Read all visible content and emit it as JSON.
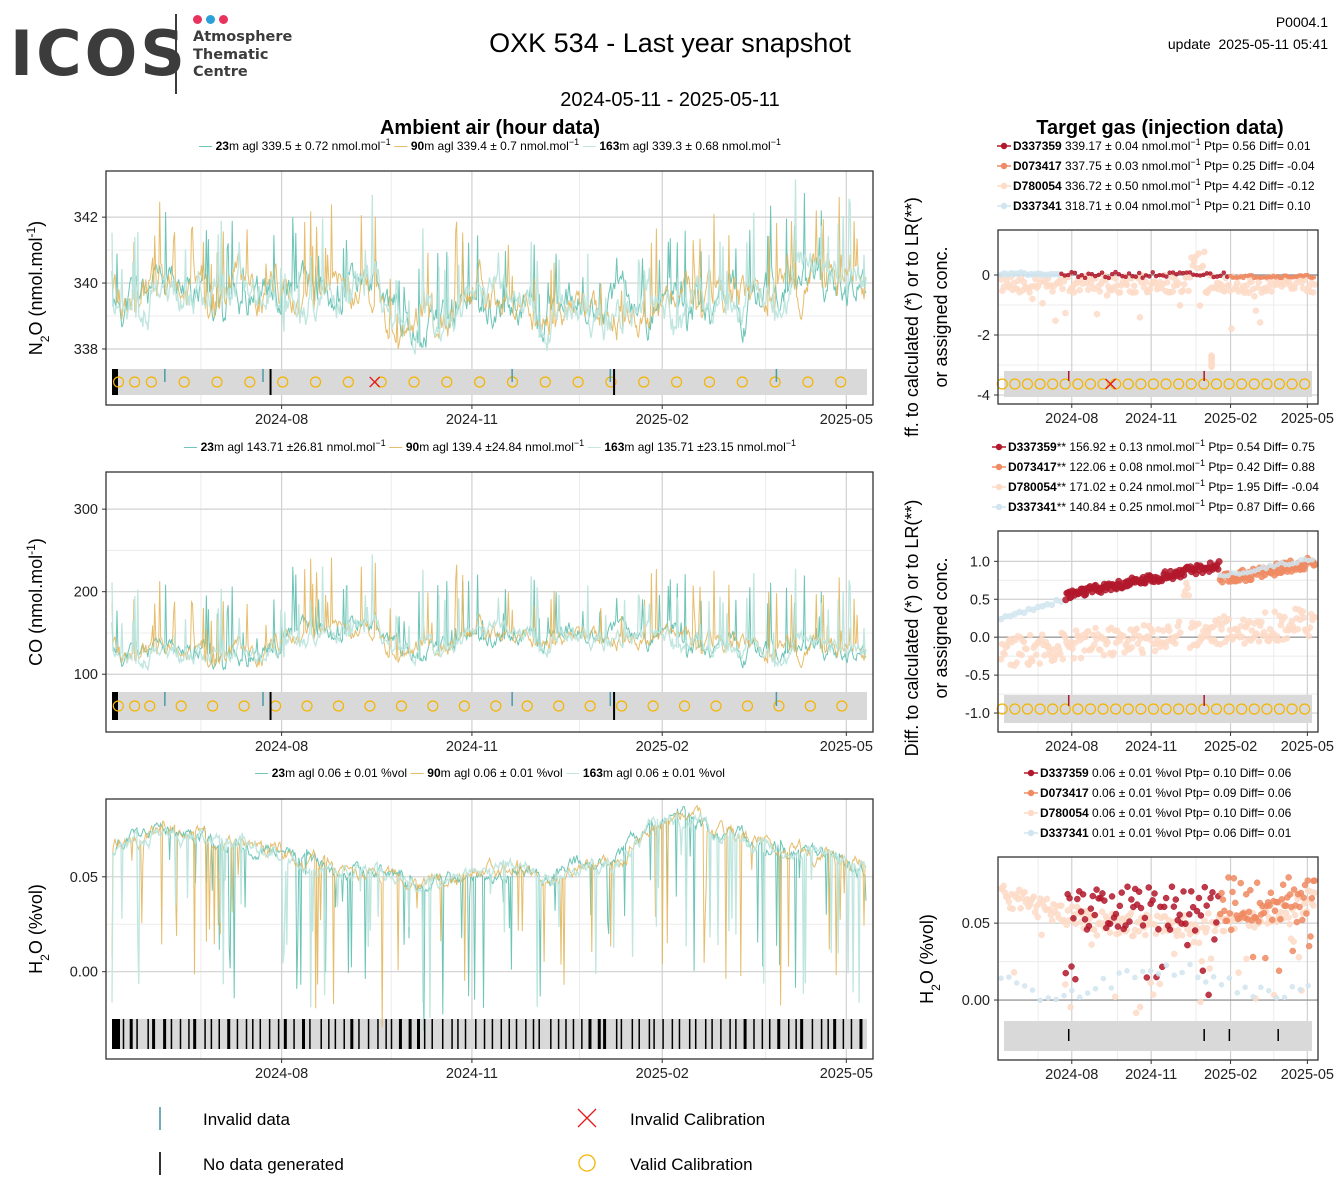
{
  "header": {
    "logo": {
      "wordmark": "ICOS",
      "lines": [
        "Atmosphere",
        "Thematic",
        "Centre"
      ],
      "dot_colors": [
        "#e8335f",
        "#2a9fd8",
        "#e8335f"
      ]
    },
    "title": "OXK 534 - Last year snapshot",
    "date_range": "2024-05-11 - 2025-05-11",
    "plot_id": "P0004.1",
    "update": "update  2025-05-11 05:41"
  },
  "section_titles": {
    "ambient": "Ambient air (hour data)",
    "target": "Target gas (injection data)"
  },
  "colors": {
    "h23": "#5cbfae",
    "h90": "#e3b65c",
    "h163": "#bde5dd",
    "D337359": "#b2182b",
    "D073417": "#ef8a62",
    "D780054": "#fddbc7",
    "D337341": "#d1e5f0",
    "invalid_data": "#4a9aa8",
    "no_data": "#000000",
    "invalid_cal": "#e41a1c",
    "valid_cal": "#f4b400",
    "band": "#d9d9d9",
    "grid_major": "#d0d0d0",
    "grid_minor": "#ececec"
  },
  "chart_data": [
    {
      "id": "n2o-ambient",
      "type": "line",
      "ylabel": "N2O (nmol.mol-1)",
      "ylabel_parts": {
        "base": "N",
        "sub": "2",
        "mid": "O (nmol.mol",
        "sup": "-1",
        "end": ")"
      },
      "x_ticks": [
        "2024-08",
        "2024-11",
        "2025-02",
        "2025-05"
      ],
      "y_ticks": [
        338,
        340,
        342
      ],
      "ylim": [
        336.3,
        343.4
      ],
      "base": 339.5,
      "vol": 0.9,
      "events": true,
      "series": [
        {
          "height": "23",
          "unit": "m agl",
          "stats": "339.5 ± 0.72 nmol.mol",
          "sup": "−1"
        },
        {
          "height": "90",
          "unit": "m agl",
          "stats": "339.4 ± 0.7 nmol.mol",
          "sup": "−1"
        },
        {
          "height": "163",
          "unit": "m agl",
          "stats": "339.3 ± 0.68 nmol.mol",
          "sup": "−1"
        }
      ],
      "flags": {
        "valid_cal": 23,
        "invalid_cal_at": "2024-09-15"
      }
    },
    {
      "id": "co-ambient",
      "type": "line",
      "ylabel": "CO (nmol.mol-1)",
      "ylabel_parts": {
        "base": "CO (nmol.mol",
        "sub": "",
        "mid": "",
        "sup": "-1",
        "end": ")"
      },
      "x_ticks": [
        "2024-08",
        "2024-11",
        "2025-02",
        "2025-05"
      ],
      "y_ticks": [
        100,
        200,
        300
      ],
      "ylim": [
        30,
        345
      ],
      "base": 135,
      "vol": 18,
      "events": true,
      "series": [
        {
          "height": "23",
          "unit": "m agl",
          "stats": "143.71 ±26.81 nmol.mol",
          "sup": "−1"
        },
        {
          "height": "90",
          "unit": "m agl",
          "stats": "139.4 ±24.84 nmol.mol",
          "sup": "−1"
        },
        {
          "height": "163",
          "unit": "m agl",
          "stats": "135.71 ±23.15 nmol.mol",
          "sup": "−1"
        }
      ],
      "flags": {
        "valid_cal": 24
      }
    },
    {
      "id": "h2o-ambient",
      "type": "line",
      "ylabel": "H2O (%vol)",
      "ylabel_parts": {
        "base": "H",
        "sub": "2",
        "mid": "O (%vol)",
        "sup": "",
        "end": ""
      },
      "x_ticks": [
        "2024-08",
        "2024-11",
        "2025-02",
        "2025-05"
      ],
      "y_ticks": [
        0.0,
        0.05
      ],
      "ylim": [
        -0.046,
        0.091
      ],
      "base": 0.06,
      "vol": 0.006,
      "events": false,
      "series": [
        {
          "height": "23",
          "unit": "m agl",
          "stats": "0.06 ± 0.01 %vol",
          "sup": ""
        },
        {
          "height": "90",
          "unit": "m agl",
          "stats": "0.06 ± 0.01 %vol",
          "sup": ""
        },
        {
          "height": "163",
          "unit": "m agl",
          "stats": "0.06 ± 0.01 %vol",
          "sup": ""
        }
      ],
      "flags": {
        "no_data_ticks": 92
      }
    },
    {
      "id": "n2o-target",
      "type": "scatter",
      "ylabel_lines": [
        "ff. to calculated (*) or to LR(**)",
        "or assigned conc."
      ],
      "x_ticks": [
        "2024-08",
        "2024-11",
        "2025-02",
        "2025-05"
      ],
      "y_ticks": [
        -4,
        -2,
        0
      ],
      "ylim": [
        -4.3,
        1.5
      ],
      "tanks": [
        {
          "id": "D337359",
          "mark": "",
          "stats": "339.17 ± 0.04 nmol.mol",
          "sup": "−1",
          "ptp": "Ptp= 0.56",
          "diff": "Diff= 0.01"
        },
        {
          "id": "D073417",
          "mark": "",
          "stats": "337.75 ± 0.03 nmol.mol",
          "sup": "−1",
          "ptp": "Ptp= 0.25",
          "diff": "Diff= -0.04"
        },
        {
          "id": "D780054",
          "mark": "",
          "stats": "336.72 ± 0.50 nmol.mol",
          "sup": "−1",
          "ptp": "Ptp= 4.42",
          "diff": "Diff= -0.12"
        },
        {
          "id": "D337341",
          "mark": "",
          "stats": "318.71 ± 0.04 nmol.mol",
          "sup": "−1",
          "ptp": "Ptp= 0.21",
          "diff": "Diff= 0.10"
        }
      ]
    },
    {
      "id": "co-target",
      "type": "scatter",
      "ylabel_lines": [
        "Diff. to calculated (*) or to LR(**)",
        "or assigned conc."
      ],
      "x_ticks": [
        "2024-08",
        "2024-11",
        "2025-02",
        "2025-05"
      ],
      "y_ticks": [
        -1.0,
        -0.5,
        0.0,
        0.5,
        1.0
      ],
      "ylim": [
        -1.25,
        1.4
      ],
      "tanks": [
        {
          "id": "D337359",
          "mark": "**",
          "stats": "156.92 ± 0.13 nmol.mol",
          "sup": "−1",
          "ptp": "Ptp= 0.54",
          "diff": "Diff= 0.75"
        },
        {
          "id": "D073417",
          "mark": "**",
          "stats": "122.06 ± 0.08 nmol.mol",
          "sup": "−1",
          "ptp": "Ptp= 0.42",
          "diff": "Diff= 0.88"
        },
        {
          "id": "D780054",
          "mark": "**",
          "stats": "171.02 ± 0.24 nmol.mol",
          "sup": "−1",
          "ptp": "Ptp= 1.95",
          "diff": "Diff= -0.04"
        },
        {
          "id": "D337341",
          "mark": "**",
          "stats": "140.84 ± 0.25 nmol.mol",
          "sup": "−1",
          "ptp": "Ptp= 0.87",
          "diff": "Diff= 0.66"
        }
      ]
    },
    {
      "id": "h2o-target",
      "type": "scatter",
      "ylabel": "H2O (%vol)",
      "ylabel_parts": {
        "base": "H",
        "sub": "2",
        "mid": "O (%vol)",
        "sup": "",
        "end": ""
      },
      "x_ticks": [
        "2024-08",
        "2024-11",
        "2025-02",
        "2025-05"
      ],
      "y_ticks": [
        0.0,
        0.05
      ],
      "ylim": [
        -0.039,
        0.093
      ],
      "tanks": [
        {
          "id": "D337359",
          "mark": "",
          "stats": "0.06 ± 0.01 %vol",
          "sup": "",
          "ptp": "Ptp= 0.10",
          "diff": "Diff= 0.06"
        },
        {
          "id": "D073417",
          "mark": "",
          "stats": "0.06 ± 0.01 %vol",
          "sup": "",
          "ptp": "Ptp= 0.09",
          "diff": "Diff= 0.06"
        },
        {
          "id": "D780054",
          "mark": "",
          "stats": "0.06 ± 0.01 %vol",
          "sup": "",
          "ptp": "Ptp= 0.10",
          "diff": "Diff= 0.06"
        },
        {
          "id": "D337341",
          "mark": "",
          "stats": "0.01 ± 0.01 %vol",
          "sup": "",
          "ptp": "Ptp= 0.06",
          "diff": "Diff= 0.01"
        }
      ]
    }
  ],
  "bottom_legend": {
    "invalid_data": "Invalid data",
    "no_data": "No data generated",
    "invalid_cal": "Invalid Calibration",
    "valid_cal": "Valid Calibration"
  }
}
